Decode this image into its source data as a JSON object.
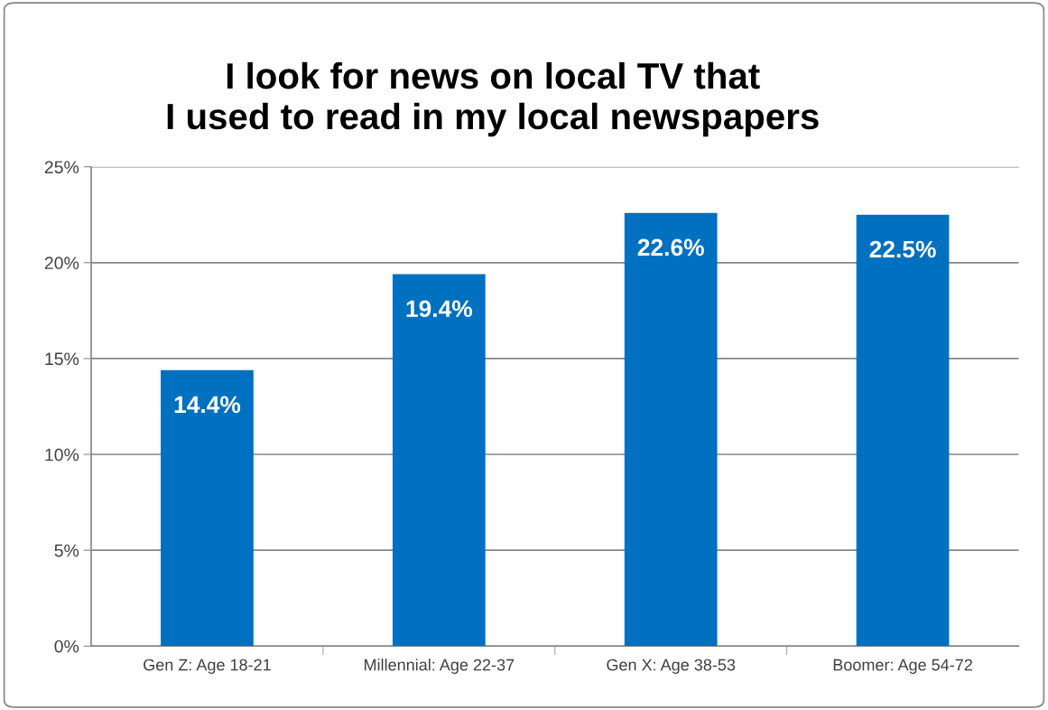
{
  "chart_data": {
    "type": "bar",
    "title": "I look for news on local TV that\nI used to read in my local newspapers",
    "categories": [
      "Gen Z: Age 18-21",
      "Millennial: Age 22-37",
      "Gen X: Age 38-53",
      "Boomer: Age 54-72"
    ],
    "values": [
      14.4,
      19.4,
      22.6,
      22.5
    ],
    "value_labels": [
      "14.4%",
      "19.4%",
      "22.6%",
      "22.5%"
    ],
    "color": "#0070c0",
    "ylim": [
      0,
      25
    ],
    "yticks": [
      {
        "value": 0,
        "label": "0%"
      },
      {
        "value": 5,
        "label": "5%"
      },
      {
        "value": 10,
        "label": "10%"
      },
      {
        "value": 15,
        "label": "15%"
      },
      {
        "value": 20,
        "label": "20%"
      },
      {
        "value": 25,
        "label": "25%"
      }
    ],
    "grid": "y",
    "legend": false
  }
}
